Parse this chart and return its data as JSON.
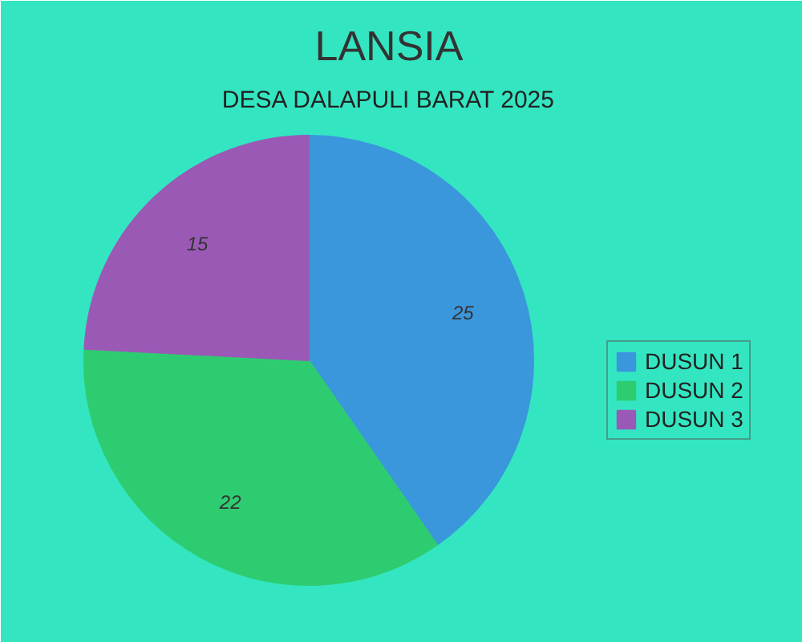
{
  "chart_data": {
    "type": "pie",
    "title": "LANSIA",
    "subtitle": "DESA DALAPULI BARAT 2025",
    "categories": [
      "DUSUN 1",
      "DUSUN 2",
      "DUSUN 3"
    ],
    "values": [
      25,
      22,
      15
    ],
    "colors": [
      "#3a97dc",
      "#2ecc71",
      "#9b59b6"
    ],
    "data_labels": true,
    "legend": "right"
  }
}
